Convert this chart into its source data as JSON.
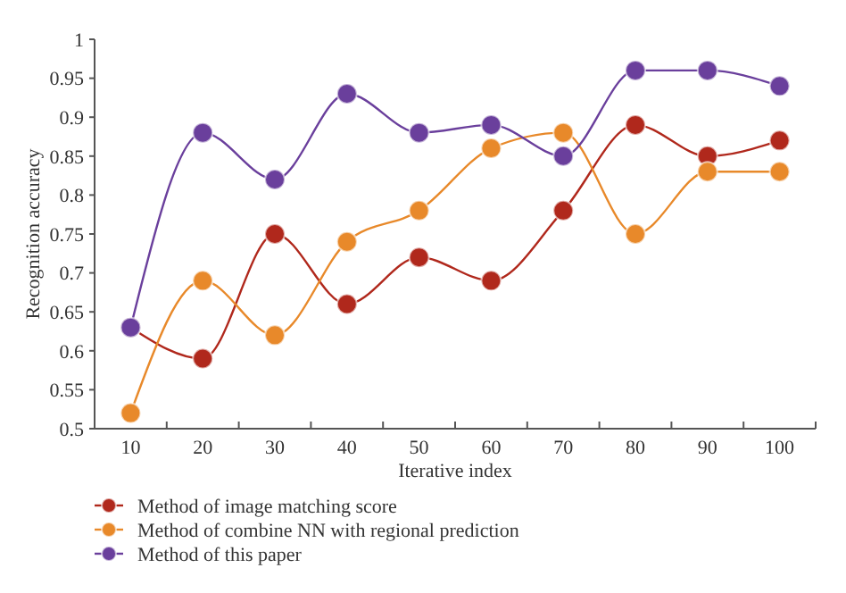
{
  "chart_data": {
    "type": "line",
    "xlabel": "Iterative index",
    "ylabel": "Recognition accuracy",
    "categories": [
      "10",
      "20",
      "30",
      "40",
      "50",
      "60",
      "70",
      "80",
      "90",
      "100"
    ],
    "ylim": [
      0.5,
      1
    ],
    "yticks": [
      0.5,
      0.55,
      0.6,
      0.65,
      0.7,
      0.75,
      0.8,
      0.85,
      0.9,
      0.95,
      1
    ],
    "marker": "circle",
    "grid": false,
    "legend": "bottom left",
    "series": [
      {
        "name": "Method of image matching score",
        "color": "#b0281c",
        "values": [
          0.63,
          0.59,
          0.75,
          0.66,
          0.72,
          0.69,
          0.78,
          0.89,
          0.85,
          0.87
        ]
      },
      {
        "name": "Method of combine NN with regional prediction",
        "color": "#e8892a",
        "values": [
          0.52,
          0.69,
          0.62,
          0.74,
          0.78,
          0.86,
          0.88,
          0.75,
          0.83,
          0.83
        ]
      },
      {
        "name": "Method of this paper",
        "color": "#6a3f9c",
        "values": [
          0.63,
          0.88,
          0.82,
          0.93,
          0.88,
          0.89,
          0.85,
          0.96,
          0.96,
          0.94
        ]
      }
    ]
  }
}
